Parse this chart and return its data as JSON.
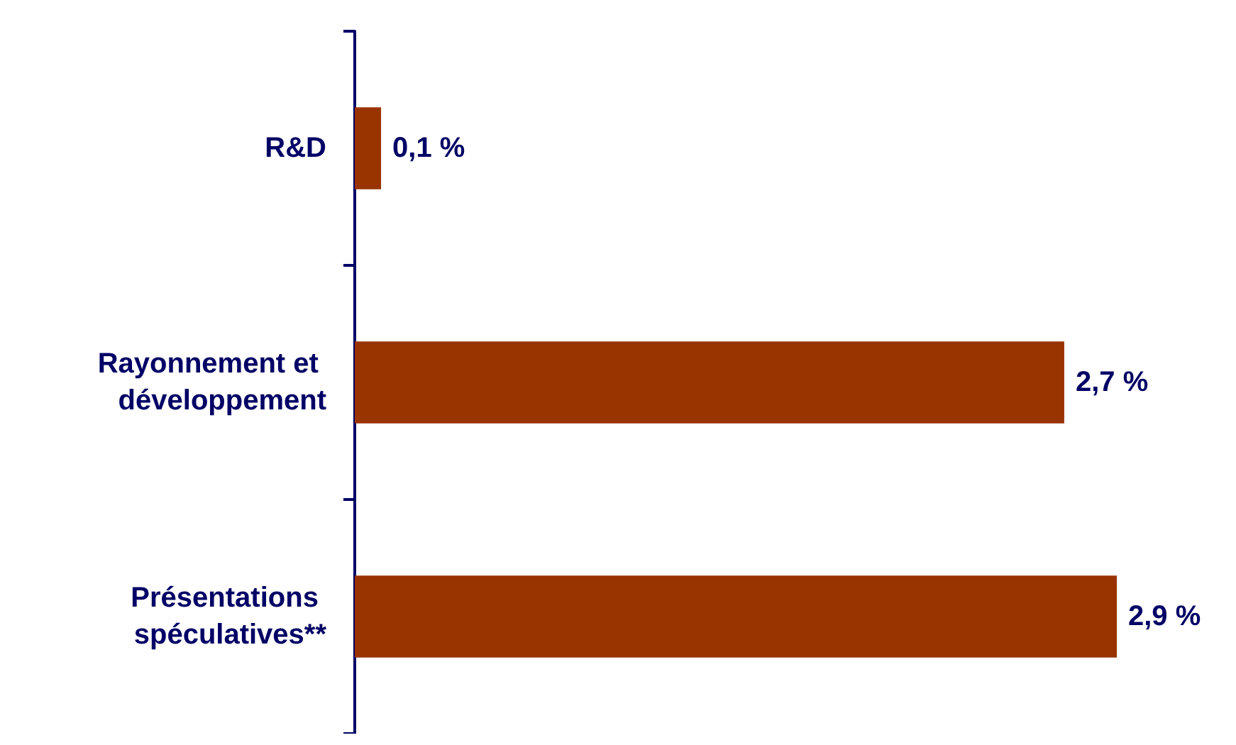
{
  "chart_data": {
    "type": "bar",
    "orientation": "horizontal",
    "categories": [
      "R&D",
      "Rayonnement et développement",
      "Présentations spéculatives**"
    ],
    "values": [
      0.1,
      2.7,
      2.9
    ],
    "color": "#993300",
    "value_labels": [
      "0,1 %",
      "2,7 %",
      "2,9 %"
    ],
    "grid": false
  }
}
